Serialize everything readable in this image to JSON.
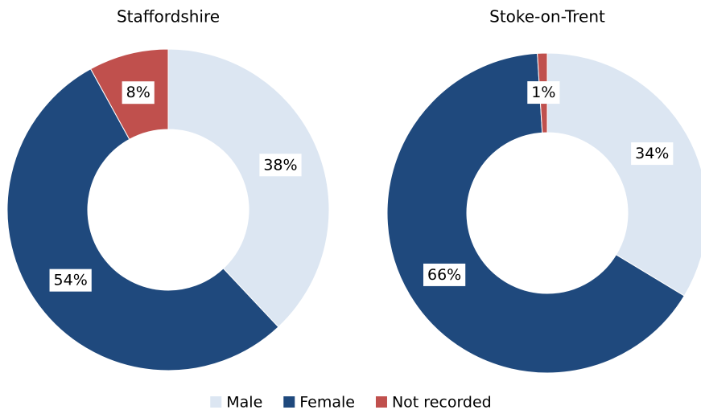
{
  "chart_data": [
    {
      "type": "donut",
      "title": "Staffordshire",
      "categories": [
        "Male",
        "Female",
        "Not recorded"
      ],
      "values": [
        38,
        54,
        8
      ],
      "value_labels": [
        "38%",
        "54%",
        "8%"
      ],
      "colors": [
        "#dce6f2",
        "#1f497d",
        "#c0504d"
      ]
    },
    {
      "type": "donut",
      "title": "Stoke-on-Trent",
      "categories": [
        "Male",
        "Female",
        "Not recorded"
      ],
      "values": [
        34,
        66,
        1
      ],
      "value_labels": [
        "34%",
        "66%",
        "1%"
      ],
      "colors": [
        "#dce6f2",
        "#1f497d",
        "#c0504d"
      ]
    }
  ]
}
